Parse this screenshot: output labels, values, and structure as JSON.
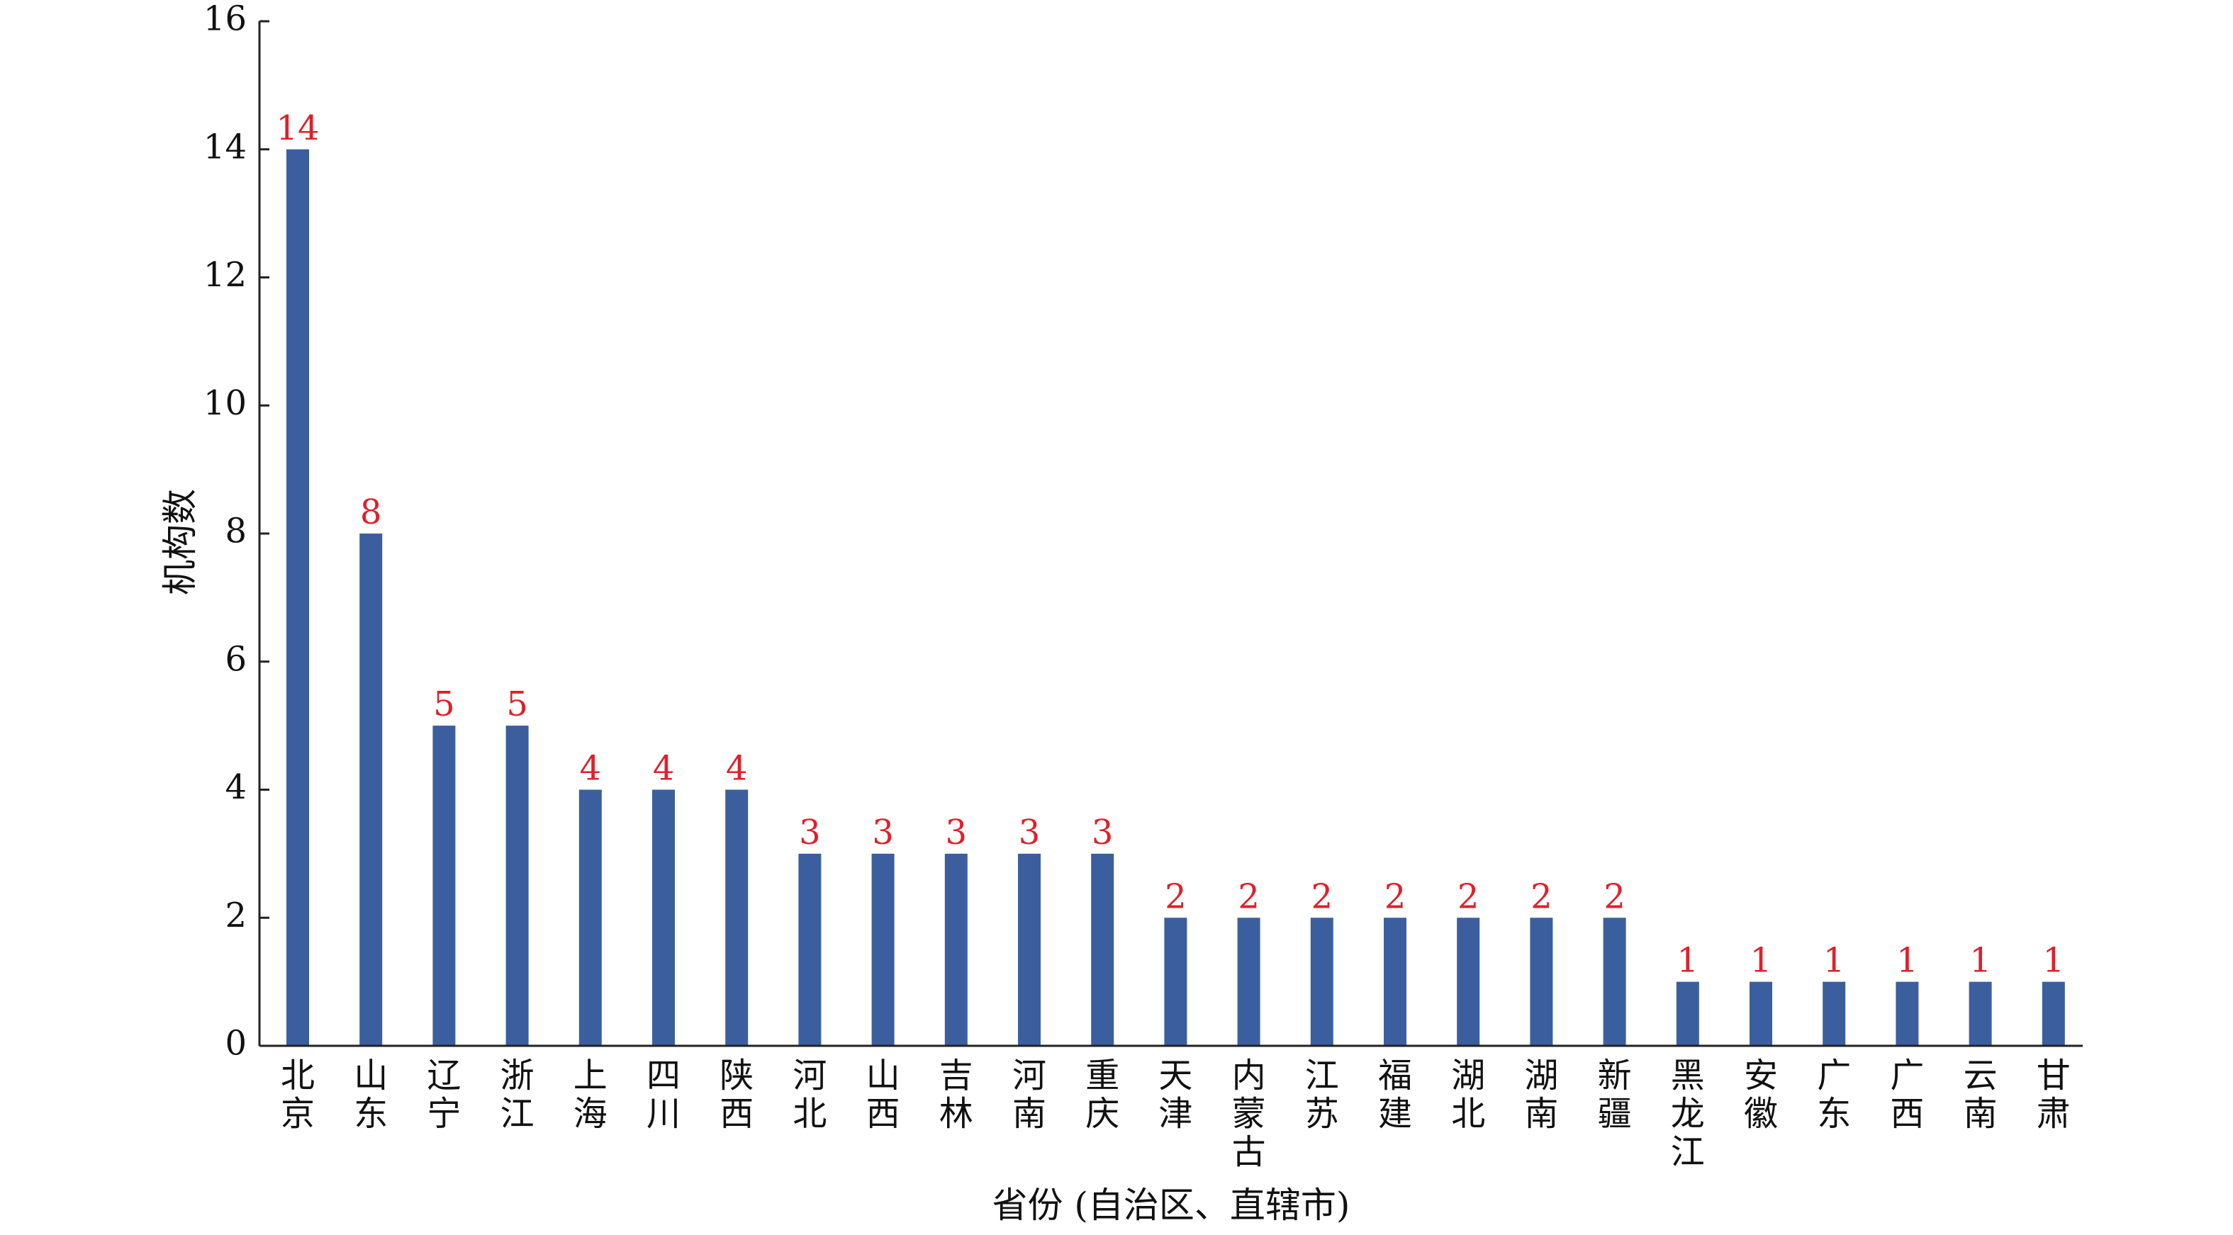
{
  "chart_data": {
    "type": "bar",
    "title": "",
    "xlabel": "省份 (自治区、直辖市)",
    "ylabel": "机构数",
    "ylim": [
      0,
      16
    ],
    "yticks": [
      0,
      2,
      4,
      6,
      8,
      10,
      12,
      14,
      16
    ],
    "grid": false,
    "legend": "none",
    "bar_color": "#3b5f9e",
    "label_color": "#e0202a",
    "categories": [
      "北京",
      "山东",
      "辽宁",
      "浙江",
      "上海",
      "四川",
      "陕西",
      "河北",
      "山西",
      "吉林",
      "河南",
      "重庆",
      "天津",
      "内蒙古",
      "江苏",
      "福建",
      "湖北",
      "湖南",
      "新疆",
      "黑龙江",
      "安徽",
      "广东",
      "广西",
      "云南",
      "甘肃"
    ],
    "values": [
      14,
      8,
      5,
      5,
      4,
      4,
      4,
      3,
      3,
      3,
      3,
      3,
      2,
      2,
      2,
      2,
      2,
      2,
      2,
      1,
      1,
      1,
      1,
      1,
      1
    ]
  }
}
